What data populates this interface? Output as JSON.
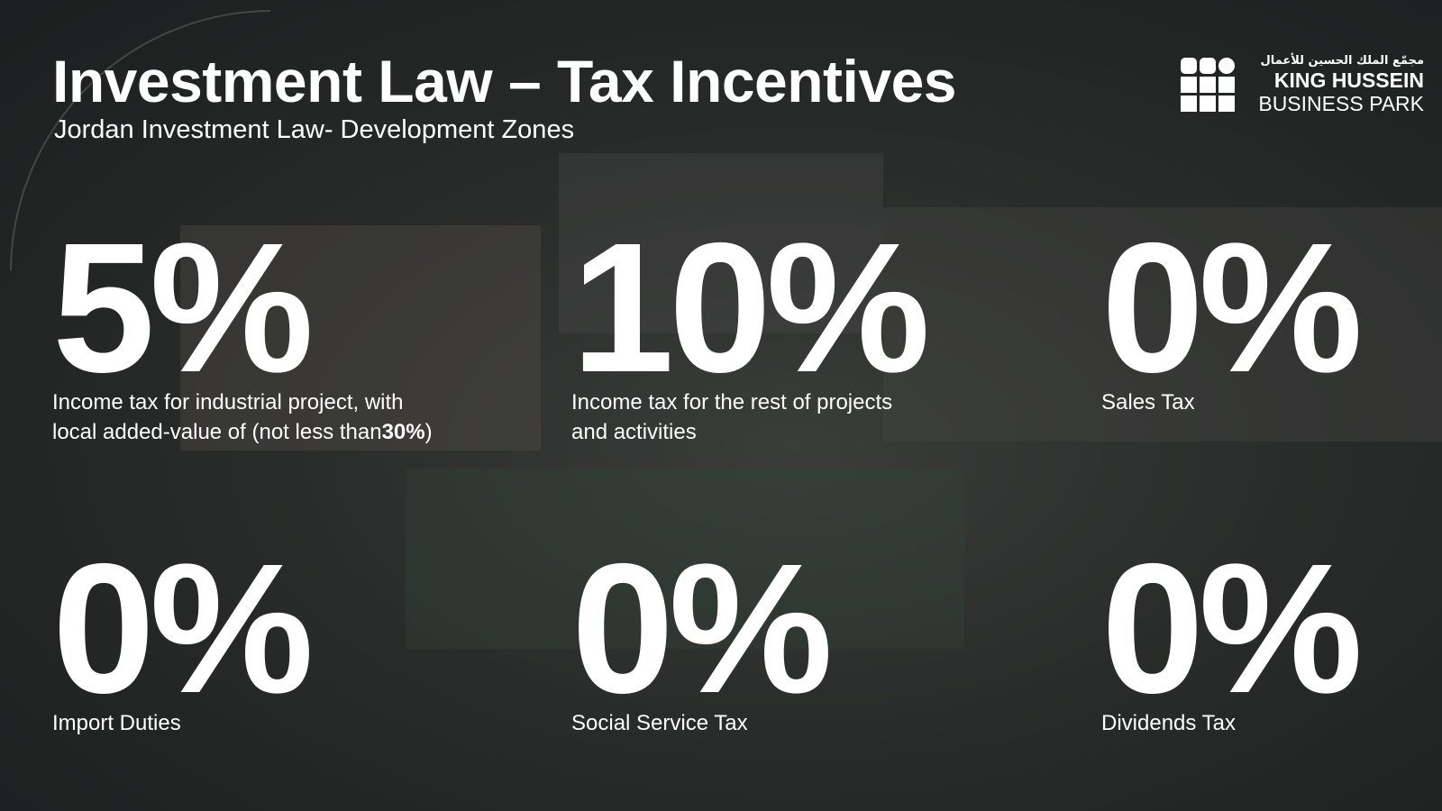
{
  "header": {
    "title": "Investment Law – Tax Incentives",
    "subtitle": "Jordan Investment Law- Development Zones"
  },
  "logo": {
    "arabic": "مجمّع الملك الحسين للأعمال",
    "line1": "KING HUSSEIN",
    "line2": "BUSINESS PARK"
  },
  "items": [
    {
      "value": "5%",
      "lines": [
        "Income tax for industrial project, with",
        "local added-value of  (not less than"
      ],
      "emphasis": "30%",
      "closing": ")"
    },
    {
      "value": "10%",
      "lines": [
        "Income tax for the rest of projects",
        "and activities"
      ]
    },
    {
      "value": "0%",
      "lines": [
        "Sales Tax"
      ]
    },
    {
      "value": "0%",
      "lines": [
        "Import Duties"
      ]
    },
    {
      "value": "0%",
      "lines": [
        "Social Service Tax"
      ]
    },
    {
      "value": "0%",
      "lines": [
        "Dividends Tax"
      ]
    }
  ]
}
